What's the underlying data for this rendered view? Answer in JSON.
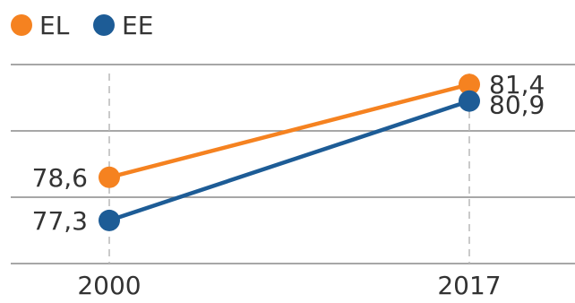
{
  "chart_data": {
    "type": "line",
    "x": [
      "2000",
      "2017"
    ],
    "series": [
      {
        "name": "EL",
        "values": [
          78.6,
          81.4
        ],
        "labels": [
          "78,6",
          "81,4"
        ],
        "color": "#F58220"
      },
      {
        "name": "EE",
        "values": [
          77.3,
          80.9
        ],
        "labels": [
          "77,3",
          "80,9"
        ],
        "color": "#1D5C96"
      }
    ],
    "ylim": [
      76.0,
      82.0
    ],
    "grid": true,
    "legend_position": "top-left",
    "title": "",
    "xlabel": "",
    "ylabel": ""
  }
}
